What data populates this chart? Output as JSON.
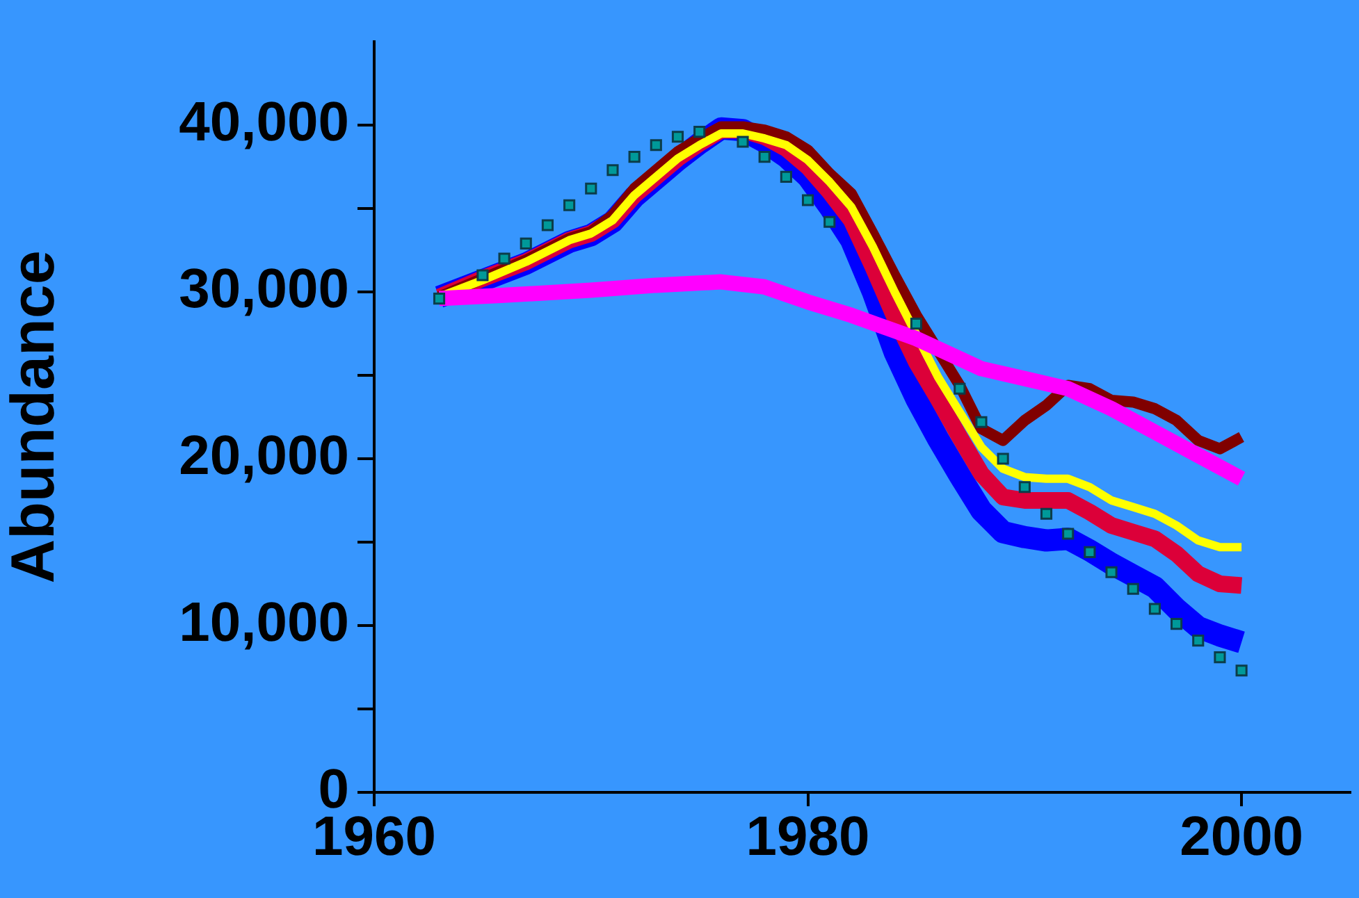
{
  "chart_data": {
    "type": "line",
    "ylabel": "Abundance",
    "xlim": [
      1960,
      2005
    ],
    "xticks": [
      1960,
      1980,
      2000
    ],
    "ylim": [
      0,
      45000
    ],
    "yticks": [
      0,
      {
        "value": 5000,
        "label": null
      },
      {
        "value": 10000,
        "label": "10,000"
      },
      {
        "value": 15000,
        "label": null
      },
      {
        "value": 20000,
        "label": "20,000"
      },
      {
        "value": 25000,
        "label": null
      },
      {
        "value": 30000,
        "label": "30,000"
      },
      {
        "value": 35000,
        "label": null
      },
      {
        "value": 40000,
        "label": "40,000"
      }
    ],
    "legend": false,
    "line_style": "solid",
    "marker": "none",
    "series": [
      {
        "color": "#0000ff",
        "x": [
          1963,
          1965,
          1967,
          1969,
          1970,
          1971,
          1972,
          1974,
          1975,
          1976,
          1977,
          1978,
          1979,
          1980,
          1981,
          1982,
          1983,
          1984,
          1985,
          1986,
          1987,
          1988,
          1989,
          1990,
          1991,
          1992,
          1993,
          1994,
          1995,
          1996,
          1997,
          1998,
          1999,
          2000
        ],
        "values": [
          29700,
          30700,
          31700,
          33000,
          33400,
          34200,
          35700,
          37900,
          38900,
          39800,
          39700,
          39000,
          38100,
          36900,
          35100,
          33100,
          30000,
          26400,
          23600,
          21200,
          19000,
          16900,
          15600,
          15300,
          15100,
          15200,
          14500,
          13700,
          13000,
          12300,
          11000,
          9900,
          9400,
          9000
        ]
      },
      {
        "color": "#dc0039",
        "x": [
          1963,
          1965,
          1967,
          1969,
          1970,
          1971,
          1972,
          1974,
          1975,
          1976,
          1977,
          1978,
          1979,
          1980,
          1981,
          1982,
          1983,
          1984,
          1985,
          1986,
          1987,
          1988,
          1989,
          1990,
          1991,
          1992,
          1993,
          1994,
          1995,
          1996,
          1997,
          1998,
          1999,
          2000
        ],
        "values": [
          29700,
          30800,
          31800,
          33100,
          33500,
          34300,
          35800,
          38000,
          38900,
          39700,
          39700,
          39300,
          38600,
          37500,
          36000,
          34300,
          31500,
          28500,
          25800,
          23600,
          21300,
          19100,
          17700,
          17500,
          17500,
          17500,
          16800,
          16000,
          15600,
          15200,
          14300,
          13100,
          12500,
          12400
        ]
      },
      {
        "color": "#800000",
        "x": [
          1963,
          1965,
          1967,
          1969,
          1970,
          1971,
          1972,
          1974,
          1975,
          1976,
          1977,
          1978,
          1979,
          1980,
          1981,
          1982,
          1983,
          1984,
          1985,
          1986,
          1987,
          1988,
          1989,
          1990,
          1991,
          1992,
          1993,
          1994,
          1995,
          1996,
          1997,
          1998,
          1999,
          2000
        ],
        "values": [
          29700,
          30800,
          31900,
          33200,
          33600,
          34600,
          36200,
          38400,
          39200,
          39900,
          39900,
          39700,
          39300,
          38500,
          37100,
          35900,
          33500,
          31000,
          28600,
          26500,
          24400,
          21800,
          21100,
          22300,
          23200,
          24400,
          24200,
          23500,
          23400,
          23000,
          22300,
          21100,
          20600,
          21300
        ]
      },
      {
        "color": "#ffff00",
        "x": [
          1963,
          1965,
          1967,
          1969,
          1970,
          1971,
          1972,
          1974,
          1975,
          1976,
          1977,
          1978,
          1979,
          1980,
          1981,
          1982,
          1983,
          1984,
          1986,
          1987,
          1988,
          1989,
          1990,
          1991,
          1992,
          1993,
          1994,
          1995,
          1996,
          1997,
          1998,
          1999,
          2000
        ],
        "values": [
          29700,
          30700,
          31800,
          33100,
          33500,
          34300,
          35800,
          38000,
          38800,
          39500,
          39500,
          39200,
          38800,
          37900,
          36600,
          35100,
          32700,
          30000,
          24900,
          22800,
          20700,
          19400,
          18900,
          18800,
          18800,
          18300,
          17500,
          17100,
          16700,
          16000,
          15100,
          14700,
          14700
        ]
      },
      {
        "color": "#ff00ff",
        "x": [
          1963,
          1966,
          1970,
          1973,
          1976,
          1978,
          1980,
          1982,
          1985,
          1988,
          1990,
          1992,
          1994,
          1996,
          1998,
          2000
        ],
        "values": [
          29600,
          29800,
          30100,
          30400,
          30600,
          30300,
          29400,
          28600,
          27200,
          25400,
          24800,
          24200,
          23000,
          21600,
          20200,
          18800
        ]
      },
      {
        "type": "scatter",
        "marker": "square",
        "color": "#009999",
        "x": [
          1963,
          1964,
          1965,
          1966,
          1967,
          1968,
          1969,
          1970,
          1971,
          1972,
          1973,
          1974,
          1975,
          1976,
          1977,
          1978,
          1979,
          1980,
          1981,
          1982,
          1983,
          1984,
          1985,
          1986,
          1987,
          1988,
          1989,
          1990,
          1991,
          1992,
          1993,
          1994,
          1995,
          1996,
          1997,
          1998,
          1999,
          2000
        ],
        "values": [
          29600,
          null,
          31000,
          32000,
          32900,
          34000,
          35200,
          36200,
          37300,
          38100,
          38800,
          39300,
          39600,
          null,
          39000,
          38100,
          36900,
          35500,
          34200,
          null,
          null,
          null,
          28100,
          null,
          24200,
          22200,
          20000,
          18300,
          16700,
          15500,
          14400,
          13200,
          12200,
          11000,
          10100,
          9100,
          8100,
          7300
        ]
      }
    ]
  }
}
